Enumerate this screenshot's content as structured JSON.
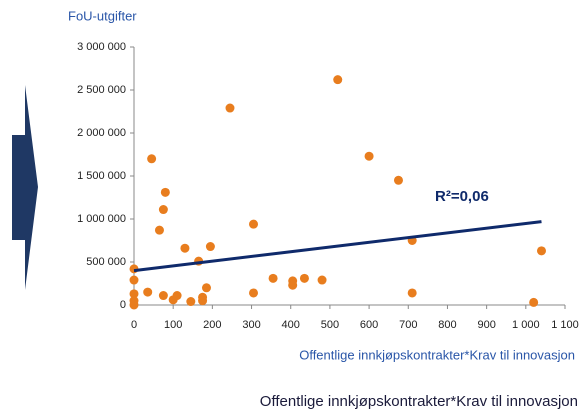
{
  "chart_data": {
    "type": "scatter",
    "ylabel": "FoU-utgifter",
    "xlabel": "Offentlige innkjøpskontrakter*Krav til innovasjon",
    "caption": "Offentlige innkjøpskontrakter*Krav til innovasjon",
    "annotation": "R²=0,06",
    "color": "#e87d1e",
    "trend_color": "#0f2a6b",
    "x": [
      0,
      0,
      0,
      0,
      0,
      35,
      45,
      65,
      75,
      80,
      75,
      100,
      110,
      130,
      145,
      165,
      175,
      175,
      185,
      195,
      245,
      305,
      305,
      355,
      405,
      405,
      435,
      480,
      520,
      600,
      675,
      710,
      710,
      1020,
      1040
    ],
    "values": [
      420000,
      290000,
      130000,
      50000,
      0,
      150000,
      1700000,
      870000,
      1110000,
      1310000,
      110000,
      60000,
      110000,
      660000,
      40000,
      510000,
      90000,
      50000,
      200000,
      680000,
      2290000,
      940000,
      140000,
      310000,
      280000,
      230000,
      310000,
      290000,
      2620000,
      1730000,
      1450000,
      750000,
      140000,
      30000,
      630000
    ],
    "trendline": {
      "x": [
        0,
        1040
      ],
      "values": [
        400000,
        970000
      ]
    },
    "xlim": [
      0,
      1100
    ],
    "ylim": [
      0,
      3000000
    ],
    "xticks": [
      0,
      100,
      200,
      300,
      400,
      500,
      600,
      700,
      800,
      900,
      {
        "value": 1000,
        "label": "1 000"
      },
      {
        "value": 1100,
        "label": "1 100"
      }
    ],
    "yticks": [
      0,
      {
        "value": 500000,
        "label": "500 000"
      },
      {
        "value": 1000000,
        "label": "1 000 000"
      },
      {
        "value": 1500000,
        "label": "1 500 000"
      },
      {
        "value": 2000000,
        "label": "2 000 000"
      },
      {
        "value": 2500000,
        "label": "2 500 000"
      },
      {
        "value": 3000000,
        "label": "3 000 000"
      }
    ]
  }
}
